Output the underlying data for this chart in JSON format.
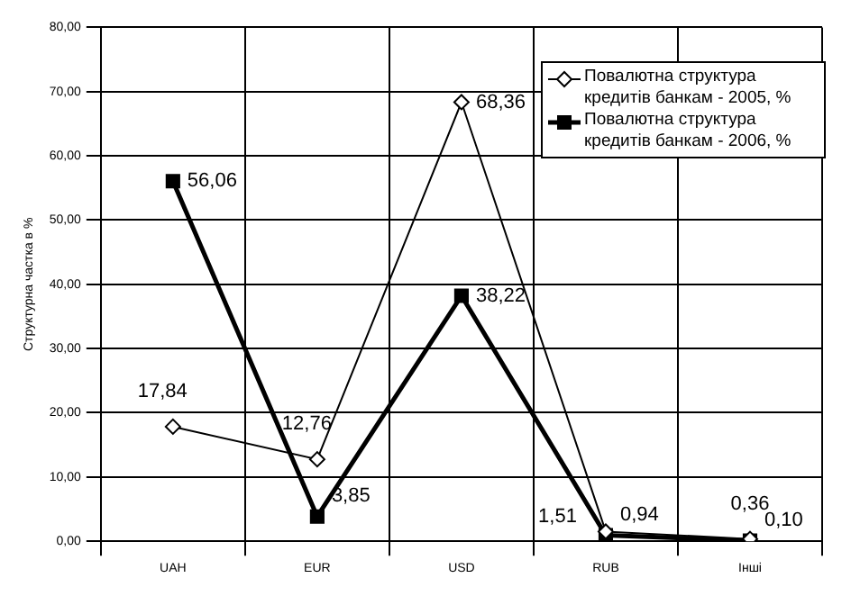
{
  "chart_data": {
    "type": "line",
    "ylabel": "Структурна частка в %",
    "categories": [
      "UAH",
      "EUR",
      "USD",
      "RUB",
      "Інші"
    ],
    "series": [
      {
        "name": "Повалютна структура кредитів банкам - 2005, %",
        "color": "#000000",
        "marker": "diamond",
        "values": [
          17.84,
          12.76,
          68.36,
          1.51,
          0.36
        ],
        "value_labels": [
          "17,84",
          "12,76",
          "68,36",
          "1,51",
          "0,36"
        ]
      },
      {
        "name": "Повалютна структура кредитів банкам - 2006, %",
        "color": "#000000",
        "marker": "square",
        "values": [
          56.06,
          3.85,
          38.22,
          0.94,
          0.1
        ],
        "value_labels": [
          "56,06",
          "3,85",
          "38,22",
          "0,94",
          "0,10"
        ]
      }
    ],
    "ylim": [
      0,
      80
    ],
    "yticks": [
      {
        "value": 0,
        "label": "0,00"
      },
      {
        "value": 10,
        "label": "10,00"
      },
      {
        "value": 20,
        "label": "20,00"
      },
      {
        "value": 30,
        "label": "30,00"
      },
      {
        "value": 40,
        "label": "40,00"
      },
      {
        "value": 50,
        "label": "50,00"
      },
      {
        "value": 60,
        "label": "60,00"
      },
      {
        "value": 70,
        "label": "70,00"
      },
      {
        "value": 80,
        "label": "80,00"
      }
    ],
    "grid": true,
    "legend": "top right"
  }
}
